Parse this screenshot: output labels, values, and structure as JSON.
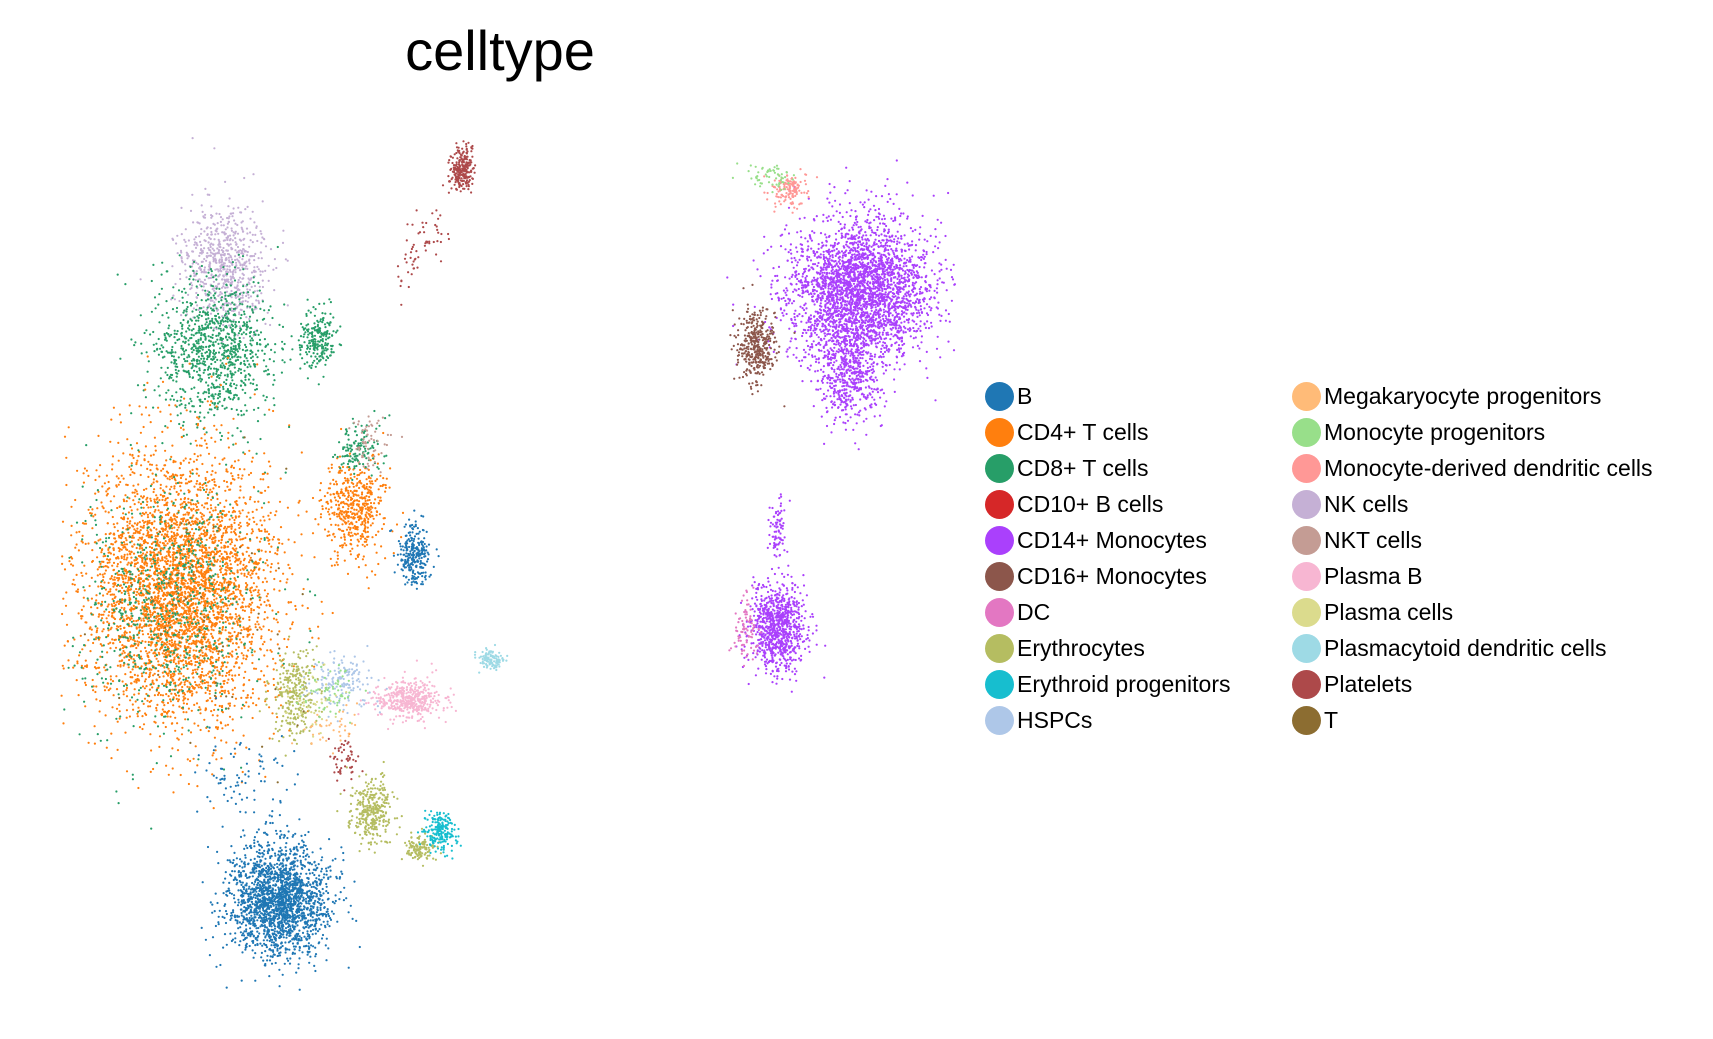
{
  "chart_data": {
    "type": "scatter",
    "title": "celltype",
    "xlabel": "",
    "ylabel": "",
    "grid": false,
    "axes_visible": false,
    "legend_placement": "right",
    "legend_columns": 2,
    "categories": [
      {
        "name": "B",
        "color": "#1f77b4"
      },
      {
        "name": "CD4+ T cells",
        "color": "#ff7f0e"
      },
      {
        "name": "CD8+ T cells",
        "color": "#279e68"
      },
      {
        "name": "CD10+ B cells",
        "color": "#d62728"
      },
      {
        "name": "CD14+ Monocytes",
        "color": "#aa40fc"
      },
      {
        "name": "CD16+ Monocytes",
        "color": "#8c564b"
      },
      {
        "name": "DC",
        "color": "#e377c2"
      },
      {
        "name": "Erythrocytes",
        "color": "#b5bd61"
      },
      {
        "name": "Erythroid progenitors",
        "color": "#17becf"
      },
      {
        "name": "HSPCs",
        "color": "#aec7e8"
      },
      {
        "name": "Megakaryocyte progenitors",
        "color": "#ffbb78"
      },
      {
        "name": "Monocyte progenitors",
        "color": "#98df8a"
      },
      {
        "name": "Monocyte-derived dendritic cells",
        "color": "#ff9896"
      },
      {
        "name": "NK cells",
        "color": "#c5b0d5"
      },
      {
        "name": "NKT cells",
        "color": "#c49c94"
      },
      {
        "name": "Plasma B",
        "color": "#f7b6d2"
      },
      {
        "name": "Plasma cells",
        "color": "#dbdb8d"
      },
      {
        "name": "Plasmacytoid dendritic cells",
        "color": "#9edae5"
      },
      {
        "name": "Platelets",
        "color": "#ad494a"
      },
      {
        "name": "T",
        "color": "#8c6d31"
      }
    ]
  }
}
